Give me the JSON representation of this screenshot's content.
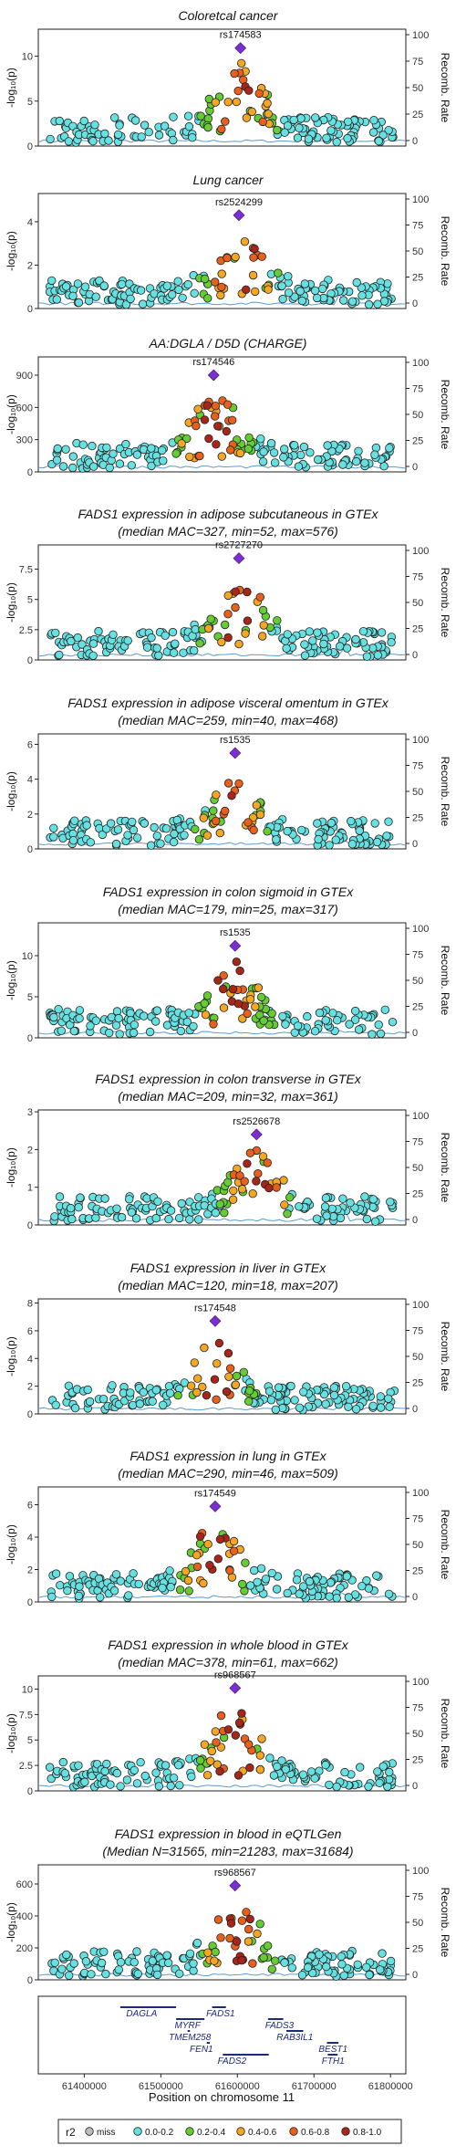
{
  "axis": {
    "left_label": "-log₁₀(p)",
    "right_label": "Recomb. Rate",
    "right_ticks": [
      "0",
      "25",
      "50",
      "75",
      "100"
    ],
    "x_label": "Position on chromosome 11",
    "x_ticks": [
      {
        "pos": 61400000,
        "label": "61400000"
      },
      {
        "pos": 61500000,
        "label": "61500000"
      },
      {
        "pos": 61600000,
        "label": "61600000"
      },
      {
        "pos": 61700000,
        "label": "61700000"
      },
      {
        "pos": 61800000,
        "label": "61800000"
      }
    ],
    "xlim": [
      61340000,
      61820000
    ]
  },
  "legend": {
    "title": "r2",
    "items": [
      {
        "label": "miss",
        "color": "#bdbdbd"
      },
      {
        "label": "0.0-0.2",
        "color": "#66e0e0"
      },
      {
        "label": "0.2-0.4",
        "color": "#66cc33"
      },
      {
        "label": "0.4-0.6",
        "color": "#f5a623"
      },
      {
        "label": "0.6-0.8",
        "color": "#e8601c"
      },
      {
        "label": "0.8-1.0",
        "color": "#a8251a"
      }
    ]
  },
  "chart_data": [
    {
      "type": "scatter",
      "title_lines": [
        "Coloretcal cancer"
      ],
      "lead_snp": "rs174583",
      "lead_pos": 61604000,
      "lead_value": 10.9,
      "ylim": [
        0,
        13
      ],
      "yticks": [
        0,
        5,
        10
      ]
    },
    {
      "type": "scatter",
      "title_lines": [
        "Lung cancer"
      ],
      "lead_snp": "rs2524299",
      "lead_pos": 61602000,
      "lead_value": 4.3,
      "ylim": [
        0,
        5.3
      ],
      "yticks": [
        0,
        2,
        4
      ]
    },
    {
      "type": "scatter",
      "title_lines": [
        "AA:DGLA / D5D (CHARGE)"
      ],
      "lead_snp": "rs174546",
      "lead_pos": 61569000,
      "lead_value": 900,
      "ylim": [
        0,
        1070
      ],
      "yticks": [
        0,
        300,
        600,
        900
      ]
    },
    {
      "type": "scatter",
      "title_lines": [
        "FADS1 expression in adipose subcutaneous in GTEx",
        "(median MAC=327, min=52, max=576)"
      ],
      "lead_snp": "rs2727270",
      "lead_pos": 61602000,
      "lead_value": 8.4,
      "ylim": [
        0,
        9.5
      ],
      "yticks": [
        0,
        2.5,
        5,
        7.5
      ]
    },
    {
      "type": "scatter",
      "title_lines": [
        "FADS1 expression in adipose visceral omentum in GTEx",
        "(median MAC=259, min=40, max=468)"
      ],
      "lead_snp": "rs1535",
      "lead_pos": 61597000,
      "lead_value": 5.5,
      "ylim": [
        0,
        6.6
      ],
      "yticks": [
        0,
        2,
        4,
        6
      ]
    },
    {
      "type": "scatter",
      "title_lines": [
        "FADS1 expression in colon sigmoid in GTEx",
        "(median MAC=179, min=25, max=317)"
      ],
      "lead_snp": "rs1535",
      "lead_pos": 61597000,
      "lead_value": 11.2,
      "ylim": [
        0,
        14
      ],
      "yticks": [
        0,
        5,
        10
      ]
    },
    {
      "type": "scatter",
      "title_lines": [
        "FADS1 expression in colon transverse in GTEx",
        "(median MAC=209, min=32, max=361)"
      ],
      "lead_snp": "rs2526678",
      "lead_pos": 61625000,
      "lead_value": 2.4,
      "ylim": [
        0,
        3.05
      ],
      "yticks": [
        0,
        1,
        2,
        3
      ]
    },
    {
      "type": "scatter",
      "title_lines": [
        "FADS1 expression in liver in GTEx",
        "(median MAC=120, min=18, max=207)"
      ],
      "lead_snp": "rs174548",
      "lead_pos": 61571000,
      "lead_value": 6.7,
      "ylim": [
        0,
        8.3
      ],
      "yticks": [
        0,
        2,
        4,
        6,
        8
      ]
    },
    {
      "type": "scatter",
      "title_lines": [
        "FADS1 expression in lung in GTEx",
        "(median MAC=290, min=46, max=509)"
      ],
      "lead_snp": "rs174549",
      "lead_pos": 61571000,
      "lead_value": 5.9,
      "ylim": [
        0,
        7.1
      ],
      "yticks": [
        0,
        2,
        4,
        6
      ]
    },
    {
      "type": "scatter",
      "title_lines": [
        "FADS1 expression in whole blood in GTEx",
        "(median MAC=378, min=61, max=662)"
      ],
      "lead_snp": "rs968567",
      "lead_pos": 61597000,
      "lead_value": 10.1,
      "ylim": [
        0,
        11.3
      ],
      "yticks": [
        0,
        2.5,
        5,
        7.5,
        10
      ]
    },
    {
      "type": "scatter",
      "title_lines": [
        "FADS1 expression in blood in eQTLGen",
        "(Median N=31565, min=21283, max=31684)"
      ],
      "lead_snp": "rs968567",
      "lead_pos": 61597000,
      "lead_value": 590,
      "ylim": [
        0,
        720
      ],
      "yticks": [
        0,
        200,
        400,
        600
      ]
    }
  ],
  "genes": [
    {
      "name": "DAGLA",
      "start": 61447000,
      "end": 61520000,
      "row": 0,
      "label_pos": 61475000
    },
    {
      "name": "FADS1",
      "start": 61567000,
      "end": 61585000,
      "row": 0,
      "label_pos": 61578000
    },
    {
      "name": "MYRF",
      "start": 61520000,
      "end": 61557000,
      "row": 1,
      "label_pos": 61535000
    },
    {
      "name": "FADS3",
      "start": 61640000,
      "end": 61660000,
      "row": 1,
      "label_pos": 61655000
    },
    {
      "name": "TMEM258",
      "start": 61535000,
      "end": 61538000,
      "row": 2,
      "label_pos": 61538000
    },
    {
      "name": "RAB3IL1",
      "start": 61664000,
      "end": 61686000,
      "row": 2,
      "label_pos": 61675000
    },
    {
      "name": "FEN1",
      "start": 61560000,
      "end": 61564000,
      "row": 3,
      "label_pos": 61553000
    },
    {
      "name": "BEST1",
      "start": 61717000,
      "end": 61732000,
      "row": 3,
      "label_pos": 61725000
    },
    {
      "name": "FADS2",
      "start": 61581000,
      "end": 61641000,
      "row": 4,
      "label_pos": 61593000
    },
    {
      "name": "FTH1",
      "start": 61718000,
      "end": 61731000,
      "row": 4,
      "label_pos": 61725000
    }
  ]
}
